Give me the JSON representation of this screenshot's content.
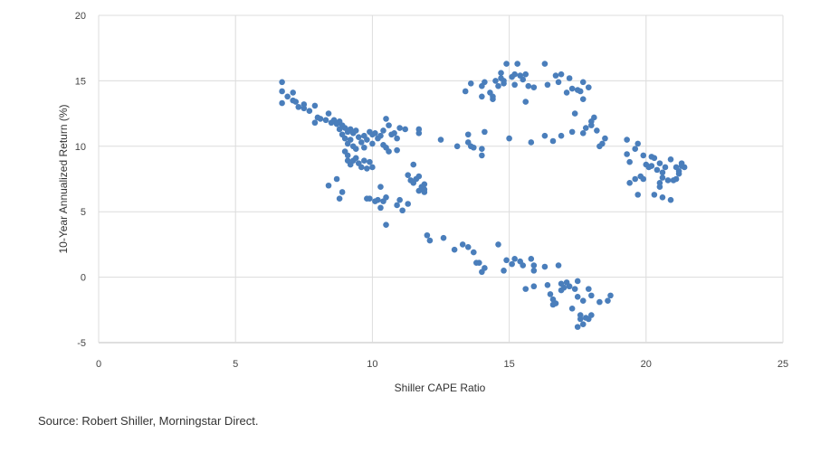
{
  "chart_data": {
    "type": "scatter",
    "xlabel": "Shiller CAPE Ratio",
    "ylabel": "10-Year Annualized Return (%)",
    "xlim": [
      0,
      25
    ],
    "ylim": [
      -5,
      20
    ],
    "xticks": [
      0,
      5,
      10,
      15,
      20,
      25
    ],
    "yticks": [
      -5,
      0,
      5,
      10,
      15,
      20
    ],
    "grid": true,
    "point_color": "#4a7ebb",
    "points": [
      [
        6.7,
        14.9
      ],
      [
        6.7,
        14.2
      ],
      [
        6.7,
        13.3
      ],
      [
        6.9,
        13.8
      ],
      [
        7.1,
        14.1
      ],
      [
        7.1,
        13.5
      ],
      [
        7.2,
        13.4
      ],
      [
        7.3,
        13.0
      ],
      [
        7.5,
        13.2
      ],
      [
        7.5,
        12.9
      ],
      [
        7.7,
        12.7
      ],
      [
        7.9,
        13.1
      ],
      [
        7.9,
        11.8
      ],
      [
        8.0,
        12.2
      ],
      [
        8.1,
        12.1
      ],
      [
        8.3,
        12.0
      ],
      [
        8.4,
        12.5
      ],
      [
        8.5,
        11.8
      ],
      [
        8.6,
        12.0
      ],
      [
        8.7,
        11.7
      ],
      [
        8.8,
        11.9
      ],
      [
        8.8,
        11.3
      ],
      [
        8.9,
        11.6
      ],
      [
        8.9,
        10.9
      ],
      [
        9.0,
        11.4
      ],
      [
        9.0,
        10.6
      ],
      [
        9.1,
        11.1
      ],
      [
        9.1,
        10.2
      ],
      [
        9.2,
        11.3
      ],
      [
        9.2,
        10.5
      ],
      [
        9.3,
        11.0
      ],
      [
        9.3,
        10.0
      ],
      [
        9.4,
        11.2
      ],
      [
        9.4,
        9.8
      ],
      [
        9.5,
        10.7
      ],
      [
        9.6,
        10.3
      ],
      [
        9.7,
        10.8
      ],
      [
        9.7,
        9.9
      ],
      [
        9.8,
        10.5
      ],
      [
        9.9,
        11.1
      ],
      [
        10.0,
        10.9
      ],
      [
        10.0,
        10.2
      ],
      [
        10.1,
        11.0
      ],
      [
        10.2,
        10.6
      ],
      [
        10.3,
        10.8
      ],
      [
        10.4,
        11.2
      ],
      [
        10.5,
        12.1
      ],
      [
        10.6,
        11.6
      ],
      [
        10.7,
        10.9
      ],
      [
        10.8,
        11.0
      ],
      [
        10.9,
        10.6
      ],
      [
        11.0,
        11.4
      ],
      [
        11.2,
        11.3
      ],
      [
        10.4,
        10.1
      ],
      [
        10.5,
        9.9
      ],
      [
        10.6,
        9.6
      ],
      [
        10.9,
        9.7
      ],
      [
        9.0,
        9.6
      ],
      [
        9.1,
        8.9
      ],
      [
        9.3,
        8.9
      ],
      [
        9.4,
        9.1
      ],
      [
        9.5,
        8.7
      ],
      [
        9.7,
        8.9
      ],
      [
        9.8,
        8.3
      ],
      [
        9.9,
        8.8
      ],
      [
        10.0,
        8.4
      ],
      [
        9.1,
        9.3
      ],
      [
        9.2,
        8.6
      ],
      [
        9.6,
        8.4
      ],
      [
        8.4,
        7.0
      ],
      [
        8.7,
        7.5
      ],
      [
        8.8,
        6.0
      ],
      [
        8.9,
        6.5
      ],
      [
        10.3,
        6.9
      ],
      [
        9.8,
        6.0
      ],
      [
        9.9,
        6.0
      ],
      [
        10.1,
        5.8
      ],
      [
        10.2,
        5.9
      ],
      [
        10.3,
        5.3
      ],
      [
        10.4,
        5.8
      ],
      [
        10.5,
        6.1
      ],
      [
        10.9,
        5.5
      ],
      [
        11.0,
        5.9
      ],
      [
        11.1,
        5.1
      ],
      [
        11.3,
        5.6
      ],
      [
        10.5,
        4.0
      ],
      [
        11.3,
        7.8
      ],
      [
        11.4,
        7.4
      ],
      [
        11.5,
        7.2
      ],
      [
        11.5,
        8.6
      ],
      [
        11.6,
        7.5
      ],
      [
        11.7,
        6.6
      ],
      [
        11.7,
        7.7
      ],
      [
        11.8,
        6.9
      ],
      [
        11.9,
        6.7
      ],
      [
        11.9,
        6.5
      ],
      [
        11.9,
        7.1
      ],
      [
        11.7,
        11.0
      ],
      [
        11.7,
        11.3
      ],
      [
        12.5,
        10.5
      ],
      [
        12.0,
        3.2
      ],
      [
        12.1,
        2.8
      ],
      [
        12.6,
        3.0
      ],
      [
        13.0,
        2.1
      ],
      [
        13.3,
        2.5
      ],
      [
        13.5,
        2.3
      ],
      [
        13.7,
        1.9
      ],
      [
        13.8,
        1.1
      ],
      [
        13.9,
        1.1
      ],
      [
        14.0,
        0.4
      ],
      [
        14.1,
        0.7
      ],
      [
        14.6,
        2.5
      ],
      [
        14.8,
        0.5
      ],
      [
        14.9,
        1.3
      ],
      [
        15.1,
        1.0
      ],
      [
        15.2,
        1.4
      ],
      [
        15.4,
        1.2
      ],
      [
        15.5,
        0.9
      ],
      [
        15.8,
        1.4
      ],
      [
        15.9,
        0.9
      ],
      [
        15.9,
        0.5
      ],
      [
        16.3,
        0.8
      ],
      [
        15.6,
        -0.9
      ],
      [
        15.9,
        -0.7
      ],
      [
        16.4,
        -0.6
      ],
      [
        16.5,
        -1.3
      ],
      [
        16.6,
        -1.7
      ],
      [
        16.6,
        -2.1
      ],
      [
        16.7,
        -2.0
      ],
      [
        16.8,
        0.9
      ],
      [
        16.9,
        -0.5
      ],
      [
        17.0,
        -0.8
      ],
      [
        17.1,
        -0.4
      ],
      [
        17.2,
        -0.7
      ],
      [
        17.3,
        -2.4
      ],
      [
        17.4,
        -0.9
      ],
      [
        17.5,
        -1.5
      ],
      [
        17.5,
        -0.3
      ],
      [
        17.5,
        -3.8
      ],
      [
        17.6,
        -3.2
      ],
      [
        17.6,
        -2.9
      ],
      [
        17.7,
        -1.8
      ],
      [
        17.7,
        -3.6
      ],
      [
        17.8,
        -3.1
      ],
      [
        17.9,
        -0.9
      ],
      [
        17.9,
        -3.2
      ],
      [
        18.0,
        -1.4
      ],
      [
        18.0,
        -2.9
      ],
      [
        18.3,
        -1.9
      ],
      [
        18.6,
        -1.8
      ],
      [
        18.7,
        -1.4
      ],
      [
        16.9,
        -1.0
      ],
      [
        13.1,
        10.0
      ],
      [
        13.4,
        14.2
      ],
      [
        13.5,
        10.9
      ],
      [
        13.5,
        10.3
      ],
      [
        13.6,
        10.0
      ],
      [
        13.6,
        14.8
      ],
      [
        13.7,
        9.9
      ],
      [
        14.0,
        14.6
      ],
      [
        14.0,
        9.8
      ],
      [
        14.0,
        9.3
      ],
      [
        14.0,
        13.8
      ],
      [
        14.1,
        11.1
      ],
      [
        14.1,
        14.9
      ],
      [
        14.3,
        14.1
      ],
      [
        14.4,
        13.6
      ],
      [
        14.4,
        13.8
      ],
      [
        14.5,
        15.0
      ],
      [
        14.6,
        14.6
      ],
      [
        14.7,
        15.6
      ],
      [
        14.7,
        15.2
      ],
      [
        14.8,
        14.8
      ],
      [
        14.8,
        15.0
      ],
      [
        14.9,
        16.3
      ],
      [
        15.0,
        10.6
      ],
      [
        15.1,
        15.3
      ],
      [
        15.2,
        14.7
      ],
      [
        15.2,
        15.5
      ],
      [
        15.3,
        16.3
      ],
      [
        15.4,
        15.4
      ],
      [
        15.5,
        15.1
      ],
      [
        15.6,
        15.5
      ],
      [
        15.6,
        13.4
      ],
      [
        15.7,
        14.6
      ],
      [
        15.8,
        10.3
      ],
      [
        15.9,
        14.5
      ],
      [
        16.3,
        16.3
      ],
      [
        16.3,
        10.8
      ],
      [
        16.4,
        14.7
      ],
      [
        16.6,
        10.4
      ],
      [
        16.7,
        15.4
      ],
      [
        16.8,
        14.9
      ],
      [
        16.9,
        10.8
      ],
      [
        16.9,
        15.5
      ],
      [
        17.1,
        14.1
      ],
      [
        17.2,
        15.2
      ],
      [
        17.3,
        11.1
      ],
      [
        17.3,
        14.4
      ],
      [
        17.4,
        12.5
      ],
      [
        17.5,
        14.3
      ],
      [
        17.6,
        14.2
      ],
      [
        17.7,
        13.6
      ],
      [
        17.7,
        11.0
      ],
      [
        17.7,
        14.9
      ],
      [
        17.8,
        11.4
      ],
      [
        17.9,
        14.5
      ],
      [
        18.0,
        11.9
      ],
      [
        18.0,
        11.6
      ],
      [
        18.1,
        12.2
      ],
      [
        18.2,
        11.2
      ],
      [
        18.3,
        10.0
      ],
      [
        18.4,
        10.2
      ],
      [
        18.5,
        10.6
      ],
      [
        19.3,
        10.5
      ],
      [
        19.3,
        9.4
      ],
      [
        19.4,
        8.8
      ],
      [
        19.4,
        7.2
      ],
      [
        19.6,
        9.8
      ],
      [
        19.6,
        7.5
      ],
      [
        19.7,
        10.2
      ],
      [
        19.7,
        6.3
      ],
      [
        19.8,
        7.7
      ],
      [
        19.9,
        9.3
      ],
      [
        19.9,
        7.5
      ],
      [
        20.0,
        8.6
      ],
      [
        20.1,
        8.4
      ],
      [
        20.2,
        9.2
      ],
      [
        20.2,
        8.5
      ],
      [
        20.3,
        9.1
      ],
      [
        20.3,
        6.3
      ],
      [
        20.4,
        8.2
      ],
      [
        20.5,
        7.2
      ],
      [
        20.5,
        6.9
      ],
      [
        20.6,
        8.0
      ],
      [
        20.6,
        7.6
      ],
      [
        20.6,
        6.1
      ],
      [
        20.7,
        8.4
      ],
      [
        20.8,
        7.4
      ],
      [
        20.9,
        9.0
      ],
      [
        20.9,
        5.9
      ],
      [
        21.0,
        7.4
      ],
      [
        21.1,
        7.5
      ],
      [
        21.1,
        8.4
      ],
      [
        21.2,
        8.1
      ],
      [
        21.2,
        7.9
      ],
      [
        21.3,
        8.5
      ],
      [
        21.3,
        8.7
      ],
      [
        21.4,
        8.4
      ],
      [
        20.5,
        8.7
      ]
    ]
  },
  "source_note": "Source: Robert Shiller, Morningstar Direct."
}
